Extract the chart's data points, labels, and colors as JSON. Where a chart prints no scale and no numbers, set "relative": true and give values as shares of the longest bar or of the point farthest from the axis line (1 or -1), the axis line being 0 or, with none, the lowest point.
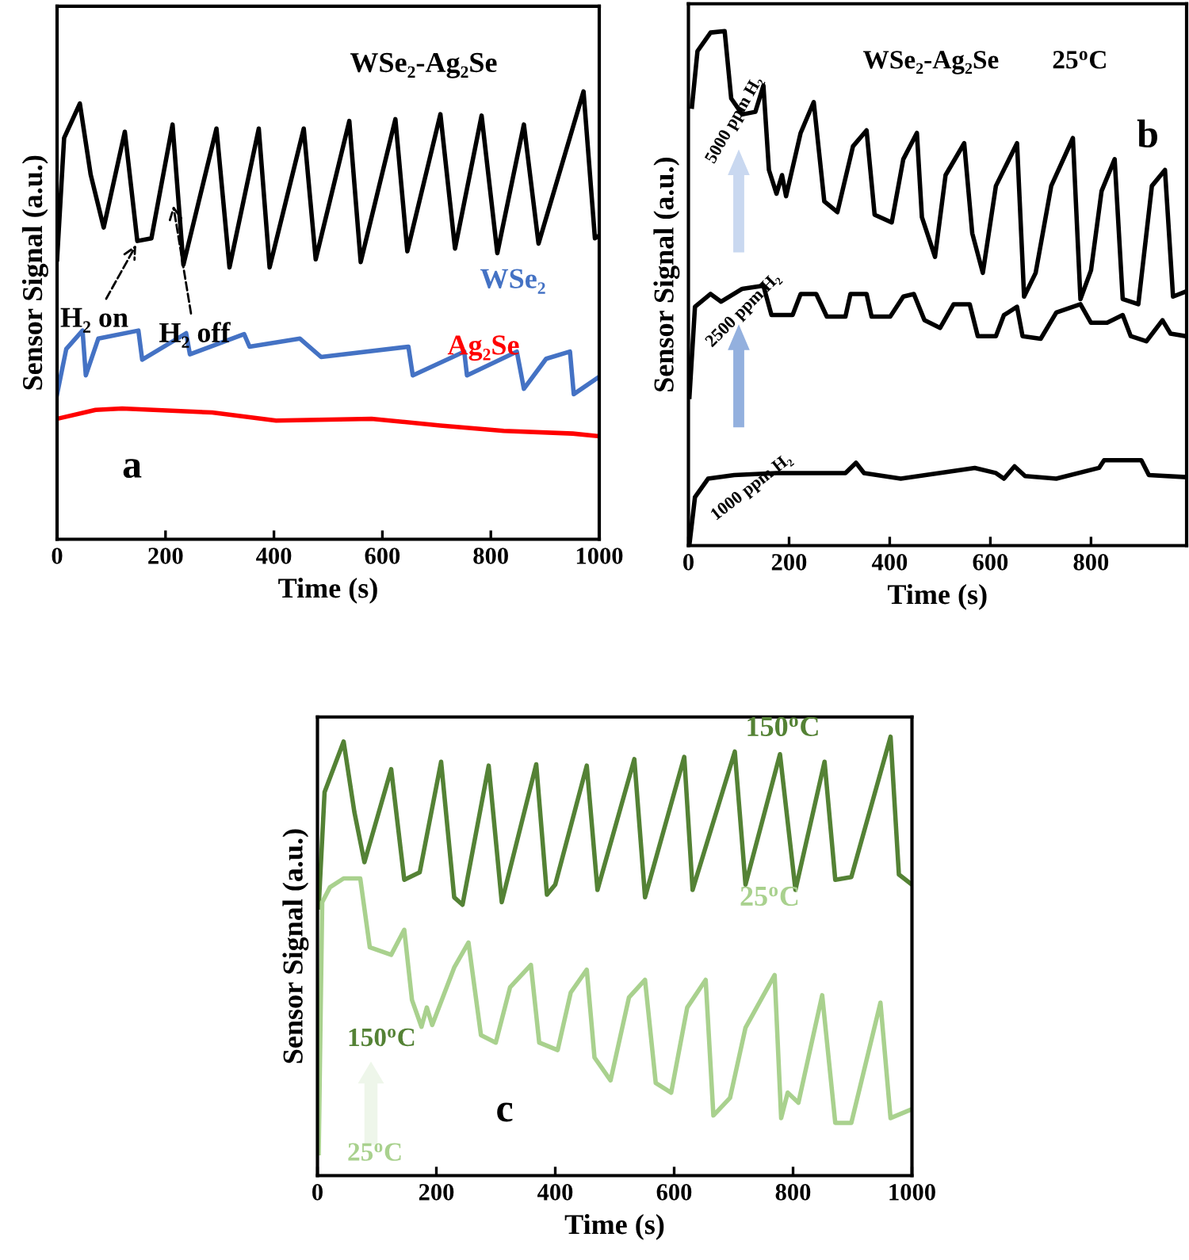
{
  "chart_data": [
    {
      "type": "line",
      "relative": true,
      "xlabel": "Time (s)",
      "ylabel": "Sensor Signal (a.u.)",
      "xlim": [
        0,
        1000
      ],
      "xticks": [
        0,
        200,
        400,
        600,
        800,
        1000
      ],
      "annotations": [
        {
          "text": "H₂ on",
          "x": 150,
          "y": 0.666
        },
        {
          "text": "H₂ off",
          "x": 213,
          "y": 0.755
        },
        "a"
      ],
      "series": [
        {
          "name": "WSe₂-Ag₂Se",
          "color": "#000000",
          "x": [
            0,
            13,
            42,
            62,
            86,
            125,
            148,
            174,
            213,
            233,
            294,
            318,
            372,
            392,
            455,
            477,
            539,
            560,
            624,
            646,
            707,
            734,
            783,
            812,
            861,
            888,
            971,
            992,
            1000
          ],
          "values": [
            0.625,
            0.896,
            0.973,
            0.814,
            0.696,
            0.91,
            0.666,
            0.672,
            0.926,
            0.613,
            0.917,
            0.607,
            0.917,
            0.607,
            0.917,
            0.625,
            0.934,
            0.619,
            0.938,
            0.643,
            0.949,
            0.649,
            0.946,
            0.639,
            0.926,
            0.66,
            1.0,
            0.672,
            0.678
          ]
        },
        {
          "name": "WSe₂",
          "color": "#4472c4",
          "x": [
            0,
            17,
            47,
            53,
            76,
            150,
            157,
            238,
            245,
            345,
            355,
            448,
            487,
            648,
            656,
            751,
            756,
            848,
            861,
            902,
            946,
            953,
            1000
          ],
          "values": [
            0.324,
            0.425,
            0.466,
            0.366,
            0.448,
            0.466,
            0.401,
            0.46,
            0.413,
            0.458,
            0.43,
            0.448,
            0.407,
            0.43,
            0.366,
            0.419,
            0.366,
            0.419,
            0.336,
            0.403,
            0.419,
            0.324,
            0.363
          ]
        },
        {
          "name": "Ag₂Se",
          "color": "#ff0000",
          "x": [
            0,
            71,
            120,
            286,
            404,
            580,
            707,
            824,
            951,
            1000
          ],
          "values": [
            0.269,
            0.289,
            0.292,
            0.283,
            0.265,
            0.269,
            0.254,
            0.242,
            0.236,
            0.23
          ]
        }
      ]
    },
    {
      "type": "line",
      "relative": true,
      "xlabel": "Time (s)",
      "ylabel": "Sensor Signal (a.u.)",
      "xlim": [
        0,
        990
      ],
      "xticks": [
        0,
        200,
        400,
        600,
        800
      ],
      "annotations": [
        "WSe₂-Ag₂Se",
        "25$^{o}$C",
        "b"
      ],
      "series": [
        {
          "name": "5000 ppm H₂",
          "color": "#000000",
          "x": [
            7,
            18,
            44,
            72,
            85,
            107,
            133,
            149,
            160,
            175,
            186,
            194,
            223,
            249,
            270,
            296,
            327,
            354,
            370,
            404,
            427,
            454,
            464,
            490,
            511,
            548,
            564,
            585,
            611,
            653,
            667,
            690,
            721,
            764,
            779,
            800,
            821,
            847,
            863,
            894,
            921,
            947,
            963,
            989
          ],
          "values": [
            0.853,
            0.961,
            0.997,
            1.0,
            0.869,
            0.838,
            0.843,
            0.894,
            0.73,
            0.684,
            0.72,
            0.679,
            0.802,
            0.862,
            0.669,
            0.648,
            0.776,
            0.807,
            0.643,
            0.628,
            0.751,
            0.802,
            0.638,
            0.561,
            0.72,
            0.782,
            0.607,
            0.53,
            0.699,
            0.782,
            0.484,
            0.53,
            0.699,
            0.792,
            0.479,
            0.535,
            0.689,
            0.751,
            0.479,
            0.469,
            0.699,
            0.73,
            0.484,
            0.494
          ]
        },
        {
          "name": "2500 ppm H₂",
          "color": "#000000",
          "x": [
            2,
            13,
            44,
            65,
            107,
            149,
            165,
            207,
            223,
            254,
            275,
            312,
            322,
            354,
            364,
            401,
            427,
            448,
            469,
            500,
            527,
            559,
            575,
            611,
            627,
            653,
            664,
            700,
            731,
            779,
            800,
            832,
            863,
            879,
            910,
            942,
            958,
            989
          ],
          "values": [
            0.289,
            0.464,
            0.489,
            0.474,
            0.499,
            0.505,
            0.448,
            0.448,
            0.489,
            0.489,
            0.445,
            0.445,
            0.489,
            0.489,
            0.445,
            0.445,
            0.484,
            0.489,
            0.438,
            0.423,
            0.469,
            0.469,
            0.407,
            0.407,
            0.448,
            0.464,
            0.407,
            0.402,
            0.453,
            0.469,
            0.433,
            0.433,
            0.448,
            0.407,
            0.397,
            0.438,
            0.412,
            0.407
          ]
        },
        {
          "name": "1000 ppm H₂",
          "color": "#000000",
          "x": [
            2,
            13,
            39,
            91,
            175,
            312,
            333,
            349,
            422,
            569,
            611,
            627,
            648,
            669,
            731,
            816,
            826,
            900,
            915,
            989
          ],
          "values": [
            0.002,
            0.094,
            0.13,
            0.137,
            0.141,
            0.141,
            0.161,
            0.141,
            0.13,
            0.151,
            0.141,
            0.13,
            0.154,
            0.135,
            0.13,
            0.151,
            0.166,
            0.166,
            0.137,
            0.133
          ]
        }
      ]
    },
    {
      "type": "line",
      "relative": true,
      "xlabel": "Time (s)",
      "ylabel": "Sensor Signal (a.u.)",
      "xlim": [
        0,
        1000
      ],
      "xticks": [
        0,
        200,
        400,
        600,
        800,
        1000
      ],
      "annotations": [
        "150$^{o}$C",
        "25$^{o}$C",
        "c"
      ],
      "series": [
        {
          "name": "150$^{o}$C",
          "color": "#548235",
          "x": [
            2,
            12,
            44,
            62,
            79,
            124,
            146,
            172,
            208,
            230,
            244,
            288,
            310,
            368,
            386,
            400,
            453,
            471,
            533,
            551,
            617,
            631,
            702,
            720,
            778,
            804,
            853,
            871,
            898,
            964,
            978,
            1000
          ],
          "values": [
            0.611,
            0.874,
            0.989,
            0.829,
            0.714,
            0.926,
            0.674,
            0.691,
            0.943,
            0.634,
            0.617,
            0.934,
            0.623,
            0.937,
            0.64,
            0.663,
            0.934,
            0.651,
            0.949,
            0.634,
            0.954,
            0.651,
            0.966,
            0.663,
            0.96,
            0.651,
            0.943,
            0.674,
            0.68,
            1.0,
            0.686,
            0.663
          ]
        },
        {
          "name": "25$^{o}$C",
          "color": "#a9d18e",
          "x": [
            2,
            8,
            21,
            44,
            72,
            88,
            124,
            146,
            159,
            175,
            184,
            193,
            230,
            254,
            275,
            300,
            324,
            359,
            373,
            404,
            426,
            453,
            466,
            493,
            524,
            551,
            569,
            595,
            622,
            653,
            666,
            694,
            720,
            769,
            780,
            791,
            809,
            849,
            871,
            898,
            947,
            964,
            996
          ],
          "values": [
            0.051,
            0.623,
            0.657,
            0.677,
            0.677,
            0.52,
            0.503,
            0.56,
            0.4,
            0.339,
            0.383,
            0.343,
            0.474,
            0.531,
            0.32,
            0.303,
            0.429,
            0.48,
            0.303,
            0.286,
            0.417,
            0.469,
            0.269,
            0.217,
            0.406,
            0.446,
            0.211,
            0.189,
            0.383,
            0.446,
            0.137,
            0.177,
            0.337,
            0.457,
            0.131,
            0.189,
            0.166,
            0.411,
            0.12,
            0.12,
            0.394,
            0.131,
            0.149
          ]
        }
      ]
    }
  ]
}
